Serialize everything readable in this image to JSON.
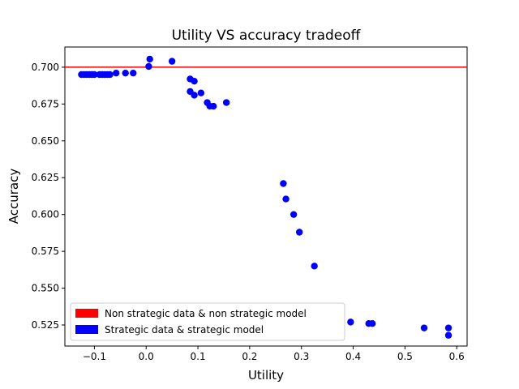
{
  "chart_data": {
    "type": "scatter",
    "title": "Utility VS accuracy tradeoff",
    "xlabel": "Utility",
    "ylabel": "Accuracy",
    "xlim": [
      -0.157,
      0.62
    ],
    "ylim": [
      0.5107,
      0.7137
    ],
    "x_ticks": [
      -0.1,
      0.0,
      0.1,
      0.2,
      0.3,
      0.4,
      0.5,
      0.6
    ],
    "x_tick_labels": [
      "−0.1",
      "0.0",
      "0.1",
      "0.2",
      "0.3",
      "0.4",
      "0.5",
      "0.6"
    ],
    "y_ticks": [
      0.525,
      0.55,
      0.575,
      0.6,
      0.625,
      0.65,
      0.675,
      0.7
    ],
    "y_tick_labels": [
      "0.525",
      "0.550",
      "0.575",
      "0.600",
      "0.625",
      "0.650",
      "0.675",
      "0.700"
    ],
    "grid": false,
    "legend_position": "lower-left",
    "series": [
      {
        "name": "Non strategic data & non strategic model",
        "type": "hline",
        "color": "#ff0000",
        "y": 0.7
      },
      {
        "name": "Strategic data & strategic model",
        "type": "scatter",
        "color": "#0000ff",
        "points": [
          [
            -0.125,
            0.695
          ],
          [
            -0.12,
            0.695
          ],
          [
            -0.115,
            0.695
          ],
          [
            -0.11,
            0.695
          ],
          [
            -0.105,
            0.695
          ],
          [
            -0.1,
            0.695
          ],
          [
            -0.09,
            0.695
          ],
          [
            -0.085,
            0.695
          ],
          [
            -0.08,
            0.695
          ],
          [
            -0.075,
            0.695
          ],
          [
            -0.07,
            0.695
          ],
          [
            -0.058,
            0.696
          ],
          [
            -0.04,
            0.696
          ],
          [
            -0.025,
            0.696
          ],
          [
            0.005,
            0.7005
          ],
          [
            0.007,
            0.7055
          ],
          [
            0.05,
            0.704
          ],
          [
            0.085,
            0.692
          ],
          [
            0.093,
            0.6905
          ],
          [
            0.085,
            0.6835
          ],
          [
            0.093,
            0.681
          ],
          [
            0.106,
            0.6825
          ],
          [
            0.118,
            0.676
          ],
          [
            0.123,
            0.6735
          ],
          [
            0.13,
            0.6735
          ],
          [
            0.155,
            0.676
          ],
          [
            0.265,
            0.621
          ],
          [
            0.27,
            0.6105
          ],
          [
            0.285,
            0.6
          ],
          [
            0.296,
            0.588
          ],
          [
            0.325,
            0.565
          ],
          [
            0.395,
            0.527
          ],
          [
            0.43,
            0.526
          ],
          [
            0.437,
            0.526
          ],
          [
            0.537,
            0.523
          ],
          [
            0.584,
            0.523
          ],
          [
            0.584,
            0.518
          ]
        ]
      }
    ]
  }
}
